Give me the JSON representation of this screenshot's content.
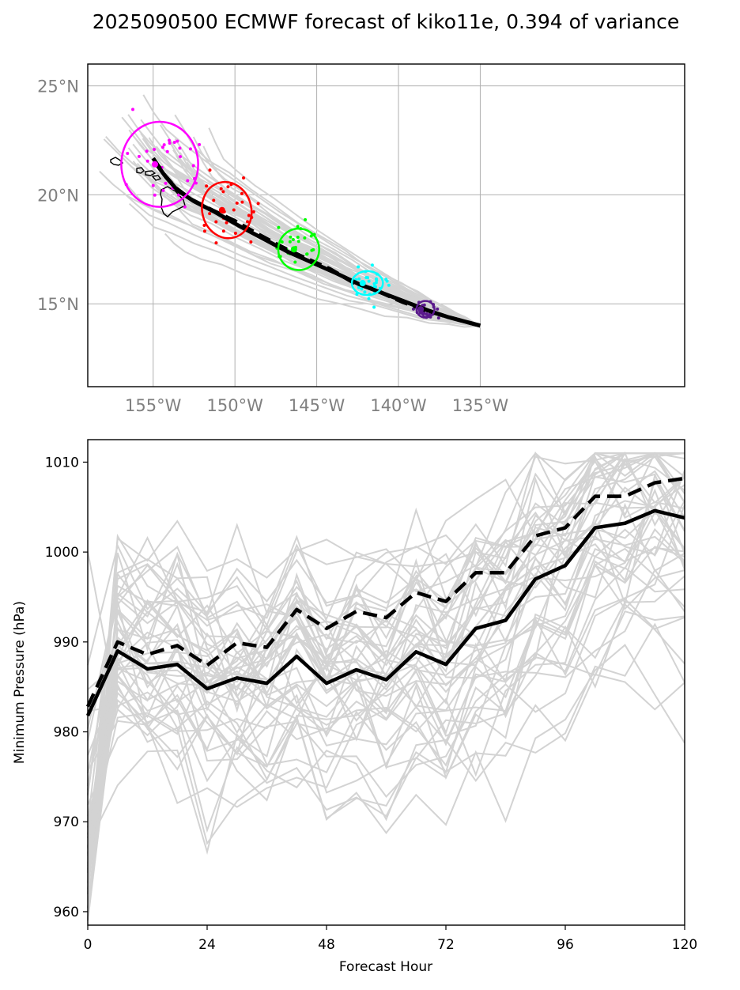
{
  "title": "2025090500 ECMWF forecast of kiko11e, 0.394 of variance",
  "colors": {
    "ensemble": "#d3d3d3",
    "mean": "#000000",
    "axis_tick_map": "#808080",
    "times": [
      "#ff00ff",
      "#ff0000",
      "#00ff00",
      "#00ffff",
      "#5a1a8c"
    ]
  },
  "chart_data": [
    {
      "type": "scatter",
      "panel": "track-map",
      "xlim": [
        -159,
        -122.5
      ],
      "ylim": [
        11.2,
        26
      ],
      "x_ticks": [
        -155,
        -150,
        -145,
        -140,
        -135
      ],
      "x_tick_labels": [
        "155°W",
        "150°W",
        "145°W",
        "140°W",
        "135°W"
      ],
      "y_ticks": [
        15,
        20,
        25
      ],
      "y_tick_labels": [
        "15°N",
        "20°N",
        "25°N"
      ],
      "grid": true,
      "mean_track_solid": {
        "lon": [
          -135,
          -136,
          -137,
          -138.2,
          -139.6,
          -141,
          -142.4,
          -143.8,
          -145.3,
          -146.8,
          -148.3,
          -149.8,
          -151.2,
          -152.5,
          -153.5,
          -154.2,
          -154.8
        ],
        "lat": [
          14.0,
          14.2,
          14.4,
          14.7,
          15.1,
          15.5,
          15.9,
          16.4,
          16.9,
          17.4,
          18.0,
          18.6,
          19.2,
          19.7,
          20.2,
          20.8,
          21.4
        ]
      },
      "mean_track_dashed": {
        "lon": [
          -135,
          -136,
          -137,
          -138.3,
          -139.8,
          -141.3,
          -142.8,
          -144.2,
          -145.7,
          -147.1,
          -148.6,
          -150,
          -151.4,
          -152.7,
          -153.6,
          -154.3,
          -155.2
        ],
        "lat": [
          14.0,
          14.2,
          14.4,
          14.7,
          15.1,
          15.6,
          16.0,
          16.6,
          17.1,
          17.6,
          18.2,
          18.8,
          19.3,
          19.8,
          20.3,
          20.9,
          21.9
        ]
      },
      "ellipses": [
        {
          "lon": -154.6,
          "lat": 21.4,
          "rx_deg": 2.35,
          "ry_deg": 1.95,
          "angle": 0,
          "color": "#ff00ff"
        },
        {
          "lon": -150.5,
          "lat": 19.3,
          "rx_deg": 1.5,
          "ry_deg": 1.3,
          "angle": -15,
          "color": "#ff0000"
        },
        {
          "lon": -146.1,
          "lat": 17.5,
          "rx_deg": 1.25,
          "ry_deg": 0.95,
          "angle": 0,
          "color": "#00ff00"
        },
        {
          "lon": -141.9,
          "lat": 15.95,
          "rx_deg": 0.95,
          "ry_deg": 0.55,
          "angle": 0,
          "color": "#00ffff"
        },
        {
          "lon": -138.35,
          "lat": 14.75,
          "rx_deg": 0.55,
          "ry_deg": 0.38,
          "angle": 0,
          "color": "#5a1a8c"
        }
      ]
    },
    {
      "type": "line",
      "panel": "pressure",
      "xlabel": "Forecast Hour",
      "ylabel": "Minimum Pressure (hPa)",
      "xlim": [
        0,
        120
      ],
      "ylim": [
        958.5,
        1012.5
      ],
      "x_ticks": [
        0,
        24,
        48,
        72,
        96,
        120
      ],
      "y_ticks": [
        960,
        970,
        980,
        990,
        1000,
        1010
      ],
      "x": [
        0,
        6,
        12,
        18,
        24,
        30,
        36,
        42,
        48,
        54,
        60,
        66,
        72,
        78,
        84,
        90,
        96,
        102,
        108,
        114,
        120
      ],
      "series": [
        {
          "style": "solid",
          "values": [
            981.8,
            989.0,
            987.0,
            987.5,
            984.8,
            986.0,
            985.4,
            988.4,
            985.4,
            986.9,
            985.8,
            988.9,
            987.5,
            991.5,
            992.4,
            997.0,
            998.5,
            1002.7,
            1003.2,
            1004.6,
            1003.8
          ]
        },
        {
          "style": "dashed",
          "values": [
            982.8,
            990.0,
            988.6,
            989.6,
            987.4,
            989.9,
            989.4,
            993.6,
            991.5,
            993.4,
            992.7,
            995.5,
            994.5,
            997.7,
            997.7,
            1001.8,
            1002.7,
            1006.2,
            1006.2,
            1007.7,
            1008.2
          ]
        }
      ]
    }
  ]
}
